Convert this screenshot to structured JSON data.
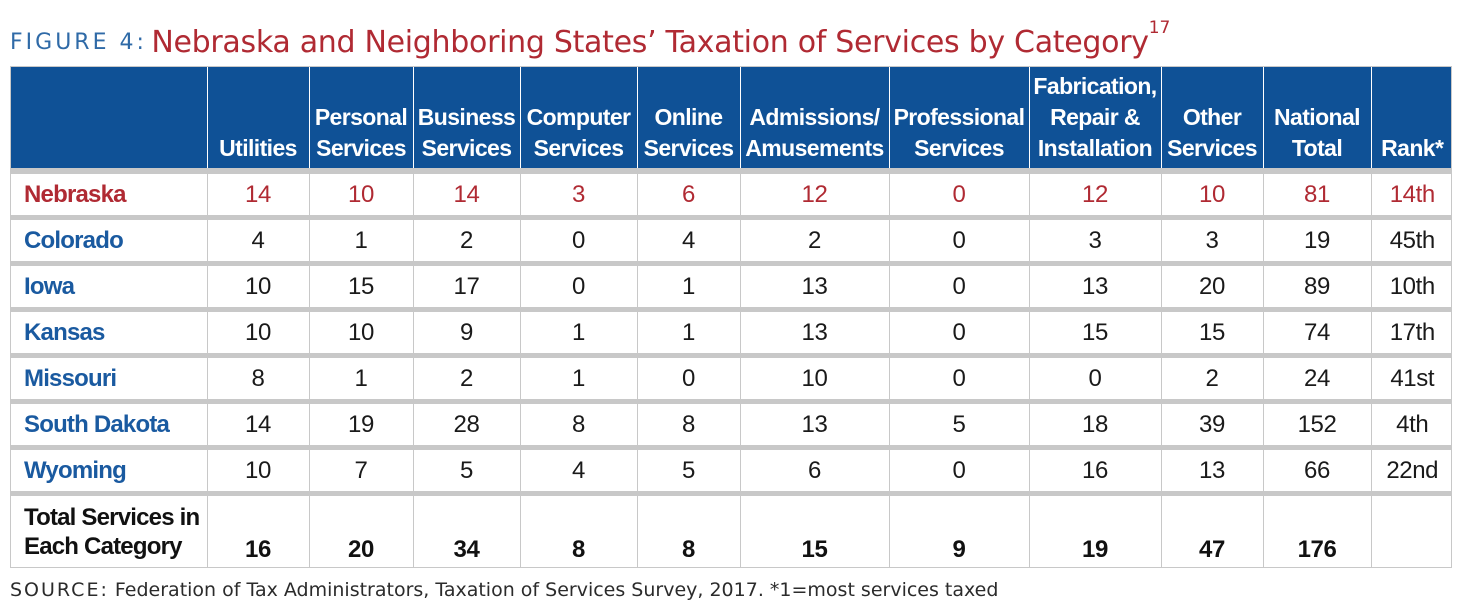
{
  "figure": {
    "label": "FIGURE 4:",
    "title": "Nebraska and Neighboring States’ Taxation of Services by Category",
    "footnote_ref": "17"
  },
  "table": {
    "headers": [
      "",
      "Utilities",
      "Personal Services",
      "Business Services",
      "Computer Services",
      "Online Services",
      "Admissions/ Amusements",
      "Professional Services",
      "Fabrication, Repair & Installation",
      "Other Services",
      "National Total",
      "Rank*"
    ],
    "rows": [
      {
        "state": "Nebraska",
        "values": [
          "14",
          "10",
          "14",
          "3",
          "6",
          "12",
          "0",
          "12",
          "10",
          "81",
          "14th"
        ]
      },
      {
        "state": "Colorado",
        "values": [
          "4",
          "1",
          "2",
          "0",
          "4",
          "2",
          "0",
          "3",
          "3",
          "19",
          "45th"
        ]
      },
      {
        "state": "Iowa",
        "values": [
          "10",
          "15",
          "17",
          "0",
          "1",
          "13",
          "0",
          "13",
          "20",
          "89",
          "10th"
        ]
      },
      {
        "state": "Kansas",
        "values": [
          "10",
          "10",
          "9",
          "1",
          "1",
          "13",
          "0",
          "15",
          "15",
          "74",
          "17th"
        ]
      },
      {
        "state": "Missouri",
        "values": [
          "8",
          "1",
          "2",
          "1",
          "0",
          "10",
          "0",
          "0",
          "2",
          "24",
          "41st"
        ]
      },
      {
        "state": "South Dakota",
        "values": [
          "14",
          "19",
          "28",
          "8",
          "8",
          "13",
          "5",
          "18",
          "39",
          "152",
          "4th"
        ]
      },
      {
        "state": "Wyoming",
        "values": [
          "10",
          "7",
          "5",
          "4",
          "5",
          "6",
          "0",
          "16",
          "13",
          "66",
          "22nd"
        ]
      }
    ],
    "total": {
      "label": "Total Services in Each Category",
      "values": [
        "16",
        "20",
        "34",
        "8",
        "8",
        "15",
        "9",
        "19",
        "47",
        "176",
        ""
      ]
    }
  },
  "source": {
    "label": "SOURCE:",
    "text": "Federation of Tax Administrators, Taxation of Services Survey, 2017. *1=most services taxed"
  },
  "colors": {
    "header_background": "#0f5196",
    "title_red": "#b02a33",
    "label_blue": "#2f6aa7",
    "state_blue": "#1a5aa0",
    "grid_gray": "#c8c8c8"
  }
}
